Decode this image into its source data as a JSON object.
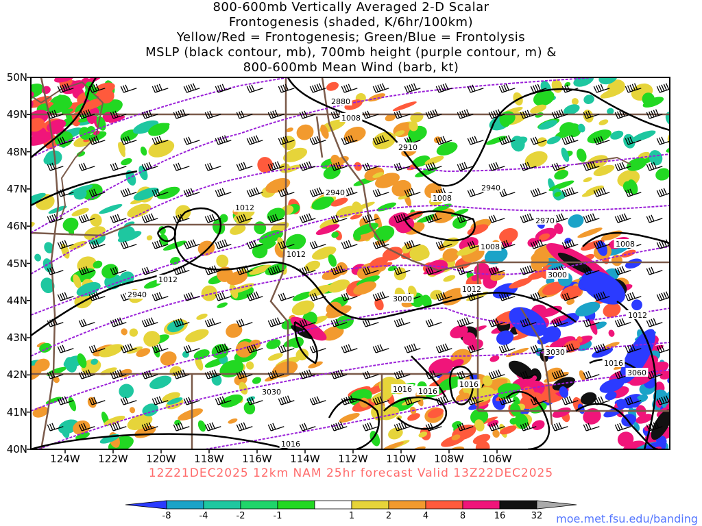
{
  "title_lines": [
    "800-600mb Vertically Averaged 2-D Scalar",
    "Frontogenesis (shaded, K/6hr/100km)",
    "Yellow/Red = Frontogenesis;  Green/Blue = Frontolysis",
    "MSLP (black contour, mb), 700mb height (purple contour, m) &",
    "800-600mb Mean Wind (barb, kt)"
  ],
  "lat_labels": [
    "50N",
    "49N",
    "48N",
    "47N",
    "46N",
    "45N",
    "44N",
    "43N",
    "42N",
    "41N",
    "40N"
  ],
  "lon_labels": [
    "124W",
    "122W",
    "120W",
    "118W",
    "116W",
    "114W",
    "112W",
    "110W",
    "108W",
    "106W"
  ],
  "footer": "12Z21DEC2025 12km NAM 25hr forecast Valid 13Z22DEC2025",
  "website": "moe.met.fsu.edu/banding",
  "colorbar": {
    "labels": [
      "-8",
      "-4",
      "-2",
      "-1",
      "1",
      "2",
      "4",
      "8",
      "16",
      "32"
    ],
    "colors": [
      "#2b3bff",
      "#1ba3c8",
      "#1ec7a0",
      "#1fd56a",
      "#22d822",
      "#ffffff",
      "#e6d43a",
      "#f29a2e",
      "#ff5a3c",
      "#f0157a",
      "#111111",
      "#aaaaaa"
    ]
  },
  "contour_labels": {
    "mslp": [
      "1008",
      "1012",
      "1012",
      "1012",
      "1008",
      "1008",
      "1012",
      "1012",
      "1008",
      "1016",
      "1016",
      "1016",
      "1016",
      "1016"
    ],
    "height": [
      "2880",
      "2910",
      "2940",
      "2940",
      "2970",
      "2940",
      "3000",
      "3000",
      "3030",
      "3030",
      "3060"
    ]
  }
}
